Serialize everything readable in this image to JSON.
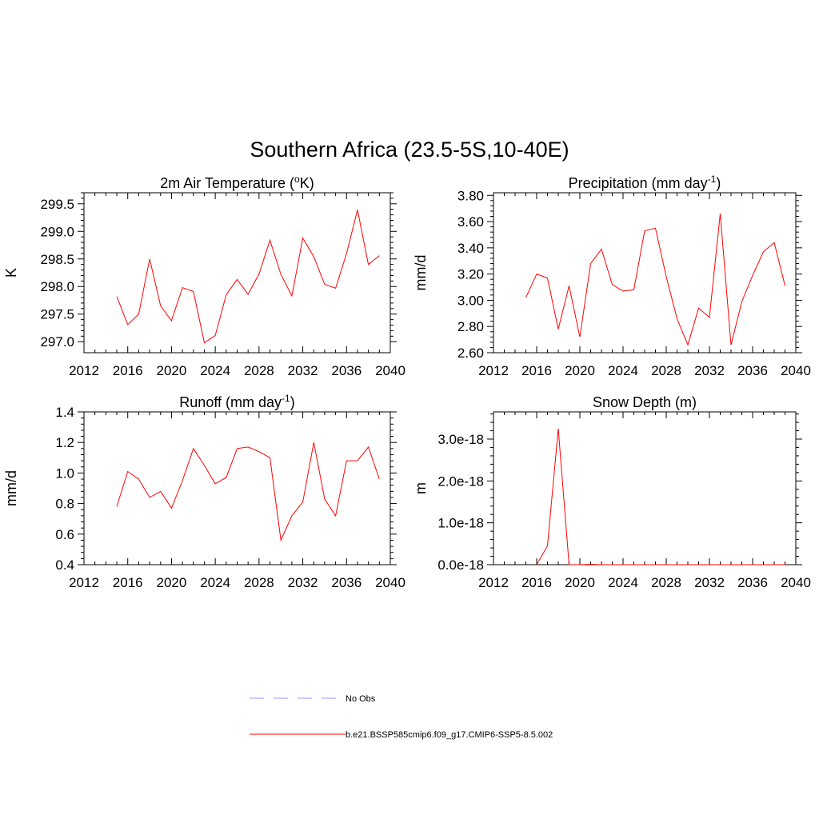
{
  "title": "Southern Africa (23.5-5S,10-40E)",
  "colors": {
    "model": "#ff0000",
    "obs": "#9999ff",
    "axis": "#000000"
  },
  "legend": [
    {
      "label": "No Obs",
      "style": "dashed",
      "color": "#9999ff"
    },
    {
      "label": "b.e21.BSSP585cmip6.f09_g17.CMIP6-SSP5-8.5.002",
      "style": "solid",
      "color": "#ff0000"
    }
  ],
  "chart_data": [
    {
      "type": "line",
      "title_main": "2m Air Temperature (",
      "title_sup": "o",
      "title_post": "K)",
      "xlabel": "",
      "ylabel": "K",
      "xlim": [
        2012,
        2040
      ],
      "ylim": [
        296.8,
        299.7
      ],
      "xticks": [
        "2012",
        "2016",
        "2020",
        "2024",
        "2028",
        "2032",
        "2036",
        "2040"
      ],
      "yticks": [
        "297.0",
        "297.5",
        "298.0",
        "298.5",
        "299.0",
        "299.5"
      ],
      "grid": false,
      "x": [
        2015,
        2016,
        2017,
        2018,
        2019,
        2020,
        2021,
        2022,
        2023,
        2024,
        2025,
        2026,
        2027,
        2028,
        2029,
        2030,
        2031,
        2032,
        2033,
        2034,
        2035,
        2036,
        2037,
        2038,
        2039
      ],
      "series": [
        {
          "values": [
            297.82,
            297.31,
            297.5,
            298.5,
            297.65,
            297.38,
            297.98,
            297.91,
            296.98,
            297.11,
            297.85,
            298.13,
            297.86,
            298.23,
            298.84,
            298.22,
            297.83,
            298.88,
            298.54,
            298.04,
            297.97,
            298.6,
            299.39,
            298.4,
            298.56
          ]
        }
      ]
    },
    {
      "type": "line",
      "title_main": "Precipitation (mm day",
      "title_sup": "-1",
      "title_post": ")",
      "xlabel": "",
      "ylabel": "mm/d",
      "xlim": [
        2012,
        2040
      ],
      "ylim": [
        2.6,
        3.82
      ],
      "xticks": [
        "2012",
        "2016",
        "2020",
        "2024",
        "2028",
        "2032",
        "2036",
        "2040"
      ],
      "yticks": [
        "2.60",
        "2.80",
        "3.00",
        "3.20",
        "3.40",
        "3.60",
        "3.80"
      ],
      "grid": false,
      "x": [
        2015,
        2016,
        2017,
        2018,
        2019,
        2020,
        2021,
        2022,
        2023,
        2024,
        2025,
        2026,
        2027,
        2028,
        2029,
        2030,
        2031,
        2032,
        2033,
        2034,
        2035,
        2036,
        2037,
        2038,
        2039
      ],
      "series": [
        {
          "values": [
            3.02,
            3.2,
            3.17,
            2.78,
            3.11,
            2.72,
            3.28,
            3.39,
            3.12,
            3.07,
            3.08,
            3.53,
            3.55,
            3.18,
            2.86,
            2.66,
            2.94,
            2.87,
            3.66,
            2.66,
            2.99,
            3.19,
            3.37,
            3.44,
            3.11
          ]
        }
      ]
    },
    {
      "type": "line",
      "title_main": "Runoff (mm day",
      "title_sup": "-1",
      "title_post": ")",
      "xlabel": "",
      "ylabel": "mm/d",
      "xlim": [
        2012,
        2040
      ],
      "ylim": [
        0.4,
        1.4
      ],
      "xticks": [
        "2012",
        "2016",
        "2020",
        "2024",
        "2028",
        "2032",
        "2036",
        "2040"
      ],
      "yticks": [
        "0.4",
        "0.6",
        "0.8",
        "1.0",
        "1.2",
        "1.4"
      ],
      "grid": false,
      "x": [
        2015,
        2016,
        2017,
        2018,
        2019,
        2020,
        2021,
        2022,
        2023,
        2024,
        2025,
        2026,
        2027,
        2028,
        2029,
        2030,
        2031,
        2032,
        2033,
        2034,
        2035,
        2036,
        2037,
        2038,
        2039
      ],
      "series": [
        {
          "values": [
            0.78,
            1.01,
            0.96,
            0.84,
            0.88,
            0.77,
            0.95,
            1.16,
            1.05,
            0.93,
            0.97,
            1.16,
            1.17,
            1.14,
            1.1,
            0.56,
            0.72,
            0.81,
            1.2,
            0.83,
            0.72,
            1.08,
            1.08,
            1.17,
            0.96
          ]
        }
      ]
    },
    {
      "type": "line",
      "title_main": "Snow Depth (m)",
      "title_sup": "",
      "title_post": "",
      "xlabel": "",
      "ylabel": "m",
      "xlim": [
        2012,
        2040
      ],
      "ylim": [
        0,
        3.65e-18
      ],
      "xticks": [
        "2012",
        "2016",
        "2020",
        "2024",
        "2028",
        "2032",
        "2036",
        "2040"
      ],
      "yticks": [
        "0.0e-18",
        "1.0e-18",
        "2.0e-18",
        "3.0e-18"
      ],
      "grid": false,
      "x": [
        2016,
        2017,
        2018,
        2019,
        2020,
        2021,
        2022,
        2023,
        2024,
        2025,
        2026,
        2027,
        2028,
        2029,
        2030,
        2031,
        2032,
        2033,
        2034,
        2035,
        2036,
        2037,
        2038,
        2039
      ],
      "series": [
        {
          "values": [
            0,
            4.5e-19,
            3.25e-18,
            0,
            0,
            1e-20,
            0,
            0,
            0,
            0,
            0,
            0,
            0,
            0,
            0,
            0,
            0,
            0,
            0,
            0,
            0,
            0,
            0,
            0
          ]
        }
      ]
    }
  ]
}
